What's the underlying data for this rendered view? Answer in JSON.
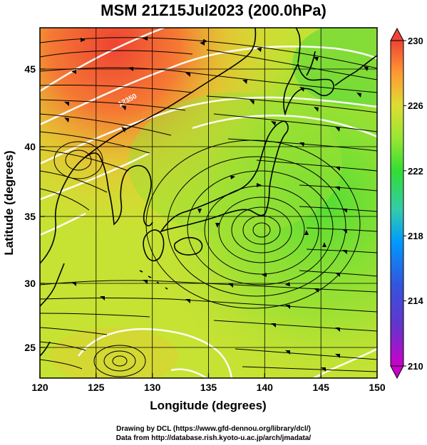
{
  "title": "MSM 21Z15Jul2023 (200.0hPa)",
  "axes": {
    "xlabel": "Longitude (degrees)",
    "ylabel": "Latitude  (degrees)",
    "x_ticks": [
      "120",
      "125",
      "130",
      "135",
      "140",
      "145",
      "150"
    ],
    "y_ticks": [
      "25",
      "30",
      "35",
      "40",
      "45"
    ],
    "xlim": [
      120,
      150
    ],
    "ylim": [
      22.4,
      47.6
    ]
  },
  "colorbar": {
    "ticks": [
      "230",
      "226",
      "222",
      "218",
      "214",
      "210"
    ],
    "range": [
      210,
      230
    ],
    "colors": [
      "#cc00cc",
      "#3333cc",
      "#0099ff",
      "#33cc99",
      "#33dd33",
      "#99e633",
      "#dddd33",
      "#ff9933",
      "#ee4433"
    ]
  },
  "contour_label": "12350",
  "credits": {
    "line1": "Drawing by DCL (https://www.gfd-dennou.org/library/dcl/)",
    "line2": "Data from http://database.rish.kyoto-u.ac.jp/arch/jmadata/"
  }
}
